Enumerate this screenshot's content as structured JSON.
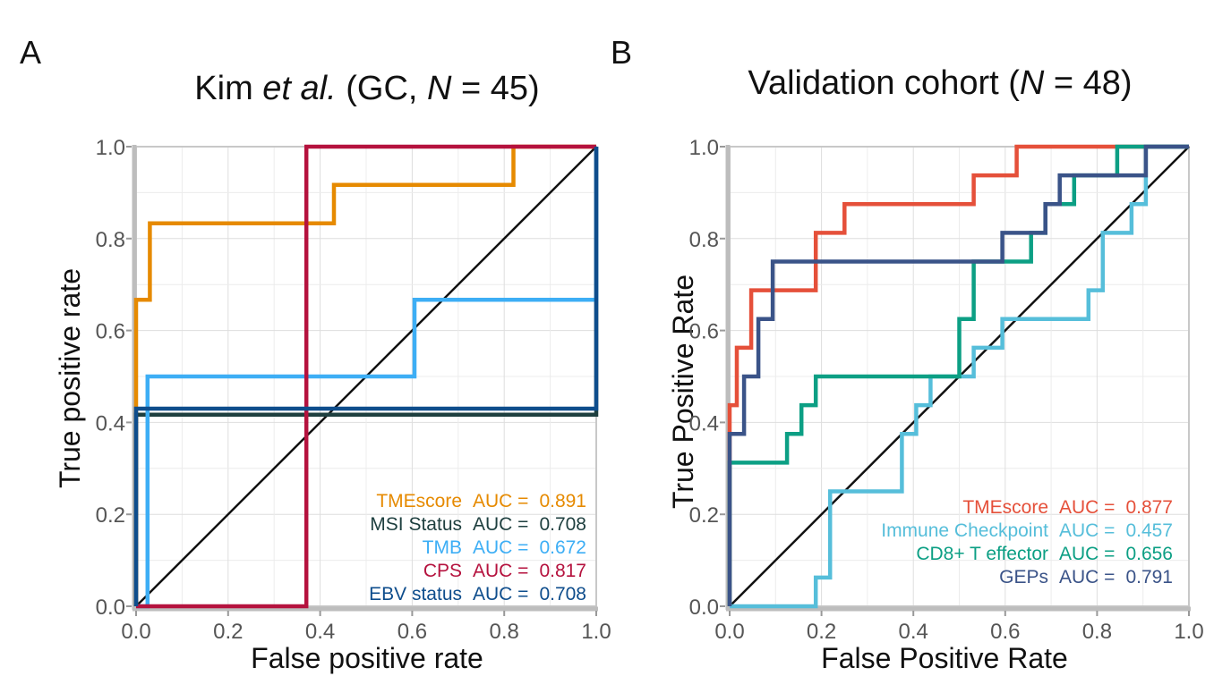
{
  "panels": {
    "a": {
      "letter": "A",
      "title_pre": "Kim ",
      "title_em": "et al.",
      "title_mid": " (GC, ",
      "title_n": "N",
      "title_post": " = 45)"
    },
    "b": {
      "letter": "B",
      "title_pre": "Validation cohort (",
      "title_n": "N",
      "title_post": " = 48)"
    }
  },
  "chart_data": [
    {
      "type": "line",
      "title": "Kim et al. (GC, N = 45)",
      "xlabel": "False positive rate",
      "ylabel": "True positive rate",
      "xlim": [
        0,
        1
      ],
      "ylim": [
        0,
        1
      ],
      "ticks": [
        "0.0",
        "0.2",
        "0.4",
        "0.6",
        "0.8",
        "1.0"
      ],
      "legend_position": "bottom-right",
      "series": [
        {
          "name": "TMEscore",
          "auc_label": "AUC =",
          "auc": "0.891",
          "color": "#E68A00",
          "points": [
            [
              0,
              0
            ],
            [
              0,
              0.667
            ],
            [
              0.03,
              0.667
            ],
            [
              0.03,
              0.833
            ],
            [
              0.43,
              0.833
            ],
            [
              0.43,
              0.917
            ],
            [
              0.82,
              0.917
            ],
            [
              0.82,
              1
            ],
            [
              1,
              1
            ]
          ]
        },
        {
          "name": "MSI Status",
          "auc_label": "AUC =",
          "auc": "0.708",
          "color": "#1E3F3F",
          "points": [
            [
              0,
              0
            ],
            [
              0,
              0.417
            ],
            [
              1,
              0.417
            ],
            [
              1,
              1
            ]
          ]
        },
        {
          "name": "TMB",
          "auc_label": "AUC =",
          "auc": "0.672",
          "color": "#3DAEF5",
          "points": [
            [
              0,
              0
            ],
            [
              0.025,
              0
            ],
            [
              0.025,
              0.5
            ],
            [
              0.605,
              0.5
            ],
            [
              0.605,
              0.667
            ],
            [
              1,
              0.667
            ],
            [
              1,
              1
            ]
          ]
        },
        {
          "name": "CPS",
          "auc_label": "AUC =",
          "auc": "0.817",
          "color": "#B5123E",
          "points": [
            [
              0,
              0
            ],
            [
              0.37,
              0
            ],
            [
              0.37,
              1
            ],
            [
              1,
              1
            ]
          ]
        },
        {
          "name": "EBV status",
          "auc_label": "AUC =",
          "auc": "0.708",
          "color": "#0E4D8C",
          "points": [
            [
              0,
              0
            ],
            [
              0,
              0.43
            ],
            [
              1,
              0.43
            ],
            [
              1,
              1
            ]
          ]
        }
      ]
    },
    {
      "type": "line",
      "title": "Validation cohort (N = 48)",
      "xlabel": "False Positive Rate",
      "ylabel": "True Positive Rate",
      "xlim": [
        0,
        1
      ],
      "ylim": [
        0,
        1
      ],
      "ticks": [
        "0.0",
        "0.2",
        "0.4",
        "0.6",
        "0.8",
        "1.0"
      ],
      "legend_position": "bottom-right",
      "series": [
        {
          "name": "TMEscore",
          "auc_label": "AUC =",
          "auc": "0.877",
          "color": "#E5503A",
          "points": [
            [
              0,
              0
            ],
            [
              0,
              0.4375
            ],
            [
              0.0156,
              0.4375
            ],
            [
              0.0156,
              0.5625
            ],
            [
              0.0469,
              0.5625
            ],
            [
              0.0469,
              0.6875
            ],
            [
              0.1875,
              0.6875
            ],
            [
              0.1875,
              0.8125
            ],
            [
              0.25,
              0.8125
            ],
            [
              0.25,
              0.875
            ],
            [
              0.5313,
              0.875
            ],
            [
              0.5313,
              0.9375
            ],
            [
              0.625,
              0.9375
            ],
            [
              0.625,
              1
            ],
            [
              1,
              1
            ]
          ]
        },
        {
          "name": "Immune Checkpoint",
          "auc_label": "AUC =",
          "auc": "0.457",
          "color": "#56BEDA",
          "points": [
            [
              0,
              0
            ],
            [
              0.1875,
              0
            ],
            [
              0.1875,
              0.0625
            ],
            [
              0.2188,
              0.0625
            ],
            [
              0.2188,
              0.25
            ],
            [
              0.375,
              0.25
            ],
            [
              0.375,
              0.375
            ],
            [
              0.4063,
              0.375
            ],
            [
              0.4063,
              0.4375
            ],
            [
              0.4375,
              0.4375
            ],
            [
              0.4375,
              0.5
            ],
            [
              0.5313,
              0.5
            ],
            [
              0.5313,
              0.5625
            ],
            [
              0.5938,
              0.5625
            ],
            [
              0.5938,
              0.625
            ],
            [
              0.7813,
              0.625
            ],
            [
              0.7813,
              0.6875
            ],
            [
              0.8125,
              0.6875
            ],
            [
              0.8125,
              0.8125
            ],
            [
              0.875,
              0.8125
            ],
            [
              0.875,
              0.875
            ],
            [
              0.9063,
              0.875
            ],
            [
              0.9063,
              1
            ],
            [
              1,
              1
            ]
          ]
        },
        {
          "name": "CD8+ T effector",
          "auc_label": "AUC =",
          "auc": "0.656",
          "color": "#0C9F84",
          "points": [
            [
              0,
              0
            ],
            [
              0,
              0.3125
            ],
            [
              0.125,
              0.3125
            ],
            [
              0.125,
              0.375
            ],
            [
              0.1563,
              0.375
            ],
            [
              0.1563,
              0.4375
            ],
            [
              0.1875,
              0.4375
            ],
            [
              0.1875,
              0.5
            ],
            [
              0.5,
              0.5
            ],
            [
              0.5,
              0.625
            ],
            [
              0.5313,
              0.625
            ],
            [
              0.5313,
              0.75
            ],
            [
              0.6563,
              0.75
            ],
            [
              0.6563,
              0.8125
            ],
            [
              0.6875,
              0.8125
            ],
            [
              0.6875,
              0.875
            ],
            [
              0.75,
              0.875
            ],
            [
              0.75,
              0.9375
            ],
            [
              0.8438,
              0.9375
            ],
            [
              0.8438,
              1
            ],
            [
              1,
              1
            ]
          ]
        },
        {
          "name": "GEPs",
          "auc_label": "AUC =",
          "auc": "0.791",
          "color": "#3A5388",
          "points": [
            [
              0,
              0
            ],
            [
              0,
              0.375
            ],
            [
              0.0313,
              0.375
            ],
            [
              0.0313,
              0.5
            ],
            [
              0.0625,
              0.5
            ],
            [
              0.0625,
              0.625
            ],
            [
              0.0938,
              0.625
            ],
            [
              0.0938,
              0.75
            ],
            [
              0.5938,
              0.75
            ],
            [
              0.5938,
              0.8125
            ],
            [
              0.6875,
              0.8125
            ],
            [
              0.6875,
              0.875
            ],
            [
              0.7188,
              0.875
            ],
            [
              0.7188,
              0.9375
            ],
            [
              0.9063,
              0.9375
            ],
            [
              0.9063,
              1
            ],
            [
              1,
              1
            ]
          ]
        }
      ]
    }
  ]
}
